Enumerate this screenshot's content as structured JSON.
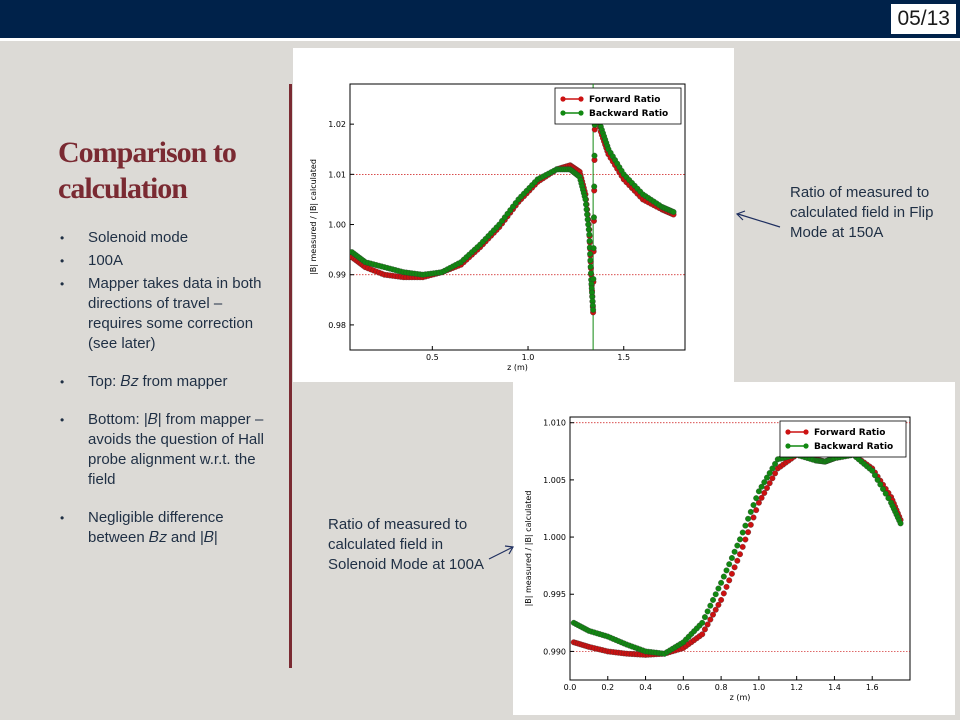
{
  "slide": {
    "number": "05/13"
  },
  "title": "Comparison to calculation",
  "bullets": [
    "Solenoid mode",
    "100A",
    "Mapper takes data in both directions of travel – requires some correction (see later)",
    "Top: 𝐵𝑧 from mapper",
    "Bottom: |𝐵| from mapper – avoids the question of Hall probe alignment w.r.t. the field",
    "Negligible difference between 𝐵𝑧 and |𝐵|"
  ],
  "captions": {
    "top": "Ratio of measured to calculated field in Flip Mode at 150A",
    "bottom": "Ratio of measured to calculated field in Solenoid Mode at 100A"
  },
  "colors": {
    "forward": "#cc1111",
    "backward": "#118811",
    "accent": "#7a2a32",
    "bar": "#00224a"
  },
  "chart_data": [
    {
      "type": "scatter",
      "xlabel": "z (m)",
      "ylabel": "|B| measured / |B| calculated",
      "xlim": [
        0.07,
        1.82
      ],
      "ylim": [
        0.975,
        1.028
      ],
      "xticks": [
        "0.5",
        "1.0",
        "1.5"
      ],
      "xtick_values": [
        0.5,
        1.0,
        1.5
      ],
      "yticks": [
        "0.98",
        "0.99",
        "1.00",
        "1.01",
        "1.02"
      ],
      "ytick_values": [
        0.98,
        0.99,
        1.0,
        1.01,
        1.02
      ],
      "hlines": [
        0.99,
        1.01
      ],
      "vline": 1.34,
      "legend": "top-right",
      "series": [
        {
          "name": "Forward Ratio",
          "color": "#cc1111",
          "x": [
            0.08,
            0.15,
            0.25,
            0.35,
            0.45,
            0.55,
            0.65,
            0.75,
            0.85,
            0.95,
            1.05,
            1.15,
            1.22,
            1.27,
            1.3,
            1.32,
            1.33,
            1.34,
            1.35,
            1.38,
            1.42,
            1.5,
            1.6,
            1.7,
            1.76
          ],
          "y": [
            0.9935,
            0.9915,
            0.99,
            0.9895,
            0.9895,
            0.9905,
            0.992,
            0.9955,
            0.9995,
            1.0045,
            1.0085,
            1.011,
            1.0118,
            1.0105,
            1.006,
            0.999,
            0.99,
            0.9825,
            1.025,
            1.0185,
            1.014,
            1.009,
            1.005,
            1.003,
            1.002
          ]
        },
        {
          "name": "Backward Ratio",
          "color": "#118811",
          "x": [
            0.08,
            0.15,
            0.25,
            0.35,
            0.45,
            0.55,
            0.65,
            0.75,
            0.85,
            0.95,
            1.05,
            1.15,
            1.22,
            1.27,
            1.3,
            1.32,
            1.33,
            1.34,
            1.35,
            1.38,
            1.42,
            1.5,
            1.6,
            1.7,
            1.76
          ],
          "y": [
            0.9945,
            0.9925,
            0.9915,
            0.9905,
            0.99,
            0.9905,
            0.9925,
            0.996,
            1.0,
            1.005,
            1.009,
            1.011,
            1.011,
            1.0095,
            1.005,
            0.998,
            0.989,
            0.983,
            1.026,
            1.0195,
            1.015,
            1.01,
            1.006,
            1.0035,
            1.0025
          ]
        }
      ]
    },
    {
      "type": "scatter",
      "xlabel": "z (m)",
      "ylabel": "|B| measured / |B| calculated",
      "xlim": [
        0.0,
        1.8
      ],
      "ylim": [
        0.9875,
        1.0105
      ],
      "xticks": [
        "0.0",
        "0.2",
        "0.4",
        "0.6",
        "0.8",
        "1.0",
        "1.2",
        "1.4",
        "1.6"
      ],
      "xtick_values": [
        0.0,
        0.2,
        0.4,
        0.6,
        0.8,
        1.0,
        1.2,
        1.4,
        1.6
      ],
      "yticks": [
        "0.990",
        "0.995",
        "1.000",
        "1.005",
        "1.010"
      ],
      "ytick_values": [
        0.99,
        0.995,
        1.0,
        1.005,
        1.01
      ],
      "hlines": [
        0.99,
        1.01
      ],
      "legend": "top-right",
      "series": [
        {
          "name": "Forward Ratio",
          "color": "#cc1111",
          "x": [
            0.02,
            0.1,
            0.2,
            0.3,
            0.4,
            0.5,
            0.6,
            0.7,
            0.8,
            0.9,
            1.0,
            1.1,
            1.2,
            1.3,
            1.35,
            1.4,
            1.5,
            1.6,
            1.7,
            1.75
          ],
          "y": [
            0.9908,
            0.9904,
            0.99,
            0.9898,
            0.9897,
            0.9898,
            0.9903,
            0.9915,
            0.9945,
            0.9985,
            1.003,
            1.006,
            1.0072,
            1.0068,
            1.0066,
            1.0069,
            1.0072,
            1.006,
            1.0035,
            1.0015
          ]
        },
        {
          "name": "Backward Ratio",
          "color": "#118811",
          "x": [
            0.02,
            0.1,
            0.2,
            0.3,
            0.4,
            0.5,
            0.6,
            0.7,
            0.8,
            0.9,
            1.0,
            1.1,
            1.2,
            1.3,
            1.35,
            1.4,
            1.5,
            1.6,
            1.7,
            1.75
          ],
          "y": [
            0.9925,
            0.9918,
            0.9913,
            0.9906,
            0.99,
            0.9898,
            0.9908,
            0.9925,
            0.996,
            0.9998,
            1.004,
            1.0068,
            1.0072,
            1.0067,
            1.0066,
            1.0069,
            1.0072,
            1.0058,
            1.003,
            1.0012
          ]
        }
      ]
    }
  ]
}
